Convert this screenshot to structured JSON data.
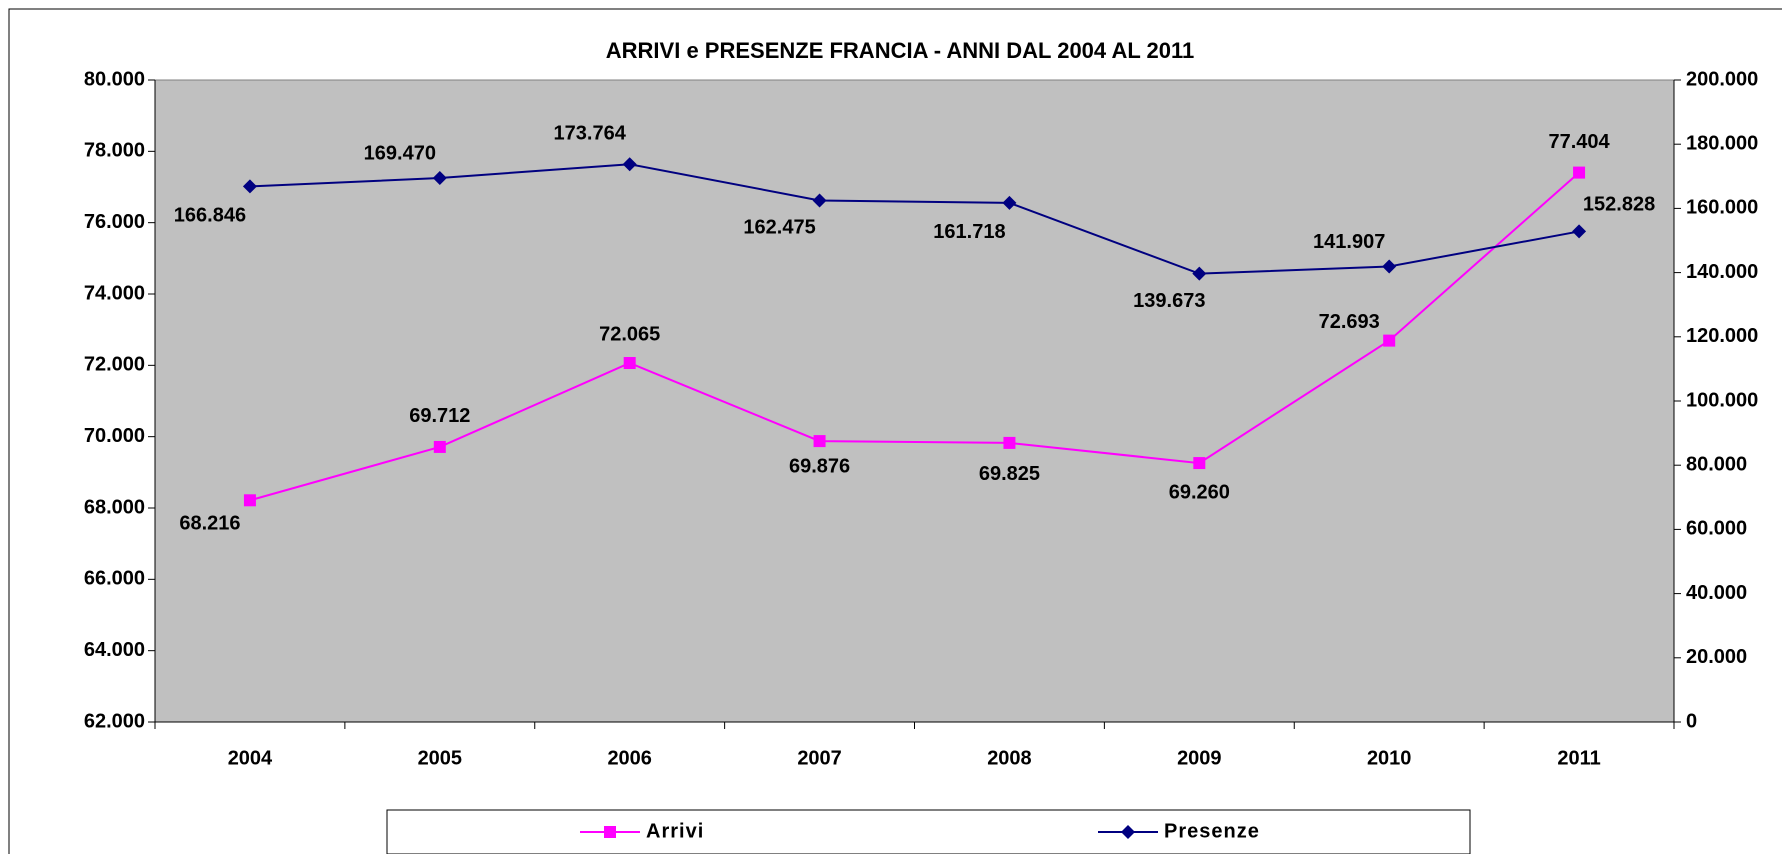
{
  "chart_data": {
    "type": "line",
    "title": "ARRIVI e PRESENZE FRANCIA - ANNI DAL 2004 AL 2011",
    "categories": [
      "2004",
      "2005",
      "2006",
      "2007",
      "2008",
      "2009",
      "2010",
      "2011"
    ],
    "series": [
      {
        "name": "Arrivi",
        "color": "#ff00ff",
        "marker": "square",
        "values": [
          68216,
          69712,
          72065,
          69876,
          69825,
          69260,
          72693,
          77404
        ],
        "value_labels": [
          "68.216",
          "69.712",
          "72.065",
          "69.876",
          "69.825",
          "69.260",
          "72.693",
          "77.404"
        ]
      },
      {
        "name": "Presenze",
        "color": "#000080",
        "marker": "diamond",
        "axis": "y2",
        "values": [
          166846,
          169470,
          173764,
          162475,
          161718,
          139673,
          141907,
          152828
        ],
        "value_labels": [
          "166.846",
          "169.470",
          "173.764",
          "162.475",
          "161.718",
          "139.673",
          "141.907",
          "152.828"
        ]
      }
    ],
    "ylim": [
      62000,
      80000
    ],
    "yticks": [
      {
        "value": 62000,
        "label": "62.000"
      },
      {
        "value": 64000,
        "label": "64.000"
      },
      {
        "value": 66000,
        "label": "66.000"
      },
      {
        "value": 68000,
        "label": "68.000"
      },
      {
        "value": 70000,
        "label": "70.000"
      },
      {
        "value": 72000,
        "label": "72.000"
      },
      {
        "value": 74000,
        "label": "74.000"
      },
      {
        "value": 76000,
        "label": "76.000"
      },
      {
        "value": 78000,
        "label": "78.000"
      },
      {
        "value": 80000,
        "label": "80.000"
      }
    ],
    "y2lim": [
      0,
      200000
    ],
    "y2ticks": [
      0,
      {
        "value": 20000,
        "label": "20.000"
      },
      {
        "value": 40000,
        "label": "40.000"
      },
      {
        "value": 60000,
        "label": "60.000"
      },
      {
        "value": 80000,
        "label": "80.000"
      },
      {
        "value": 100000,
        "label": "100.000"
      },
      {
        "value": 120000,
        "label": "120.000"
      },
      {
        "value": 140000,
        "label": "140.000"
      },
      {
        "value": 160000,
        "label": "160.000"
      },
      {
        "value": 180000,
        "label": "180.000"
      },
      {
        "value": 200000,
        "label": "200.000"
      }
    ],
    "grid": false,
    "legend": "bottom",
    "plot_background": "#c0c0c0"
  }
}
